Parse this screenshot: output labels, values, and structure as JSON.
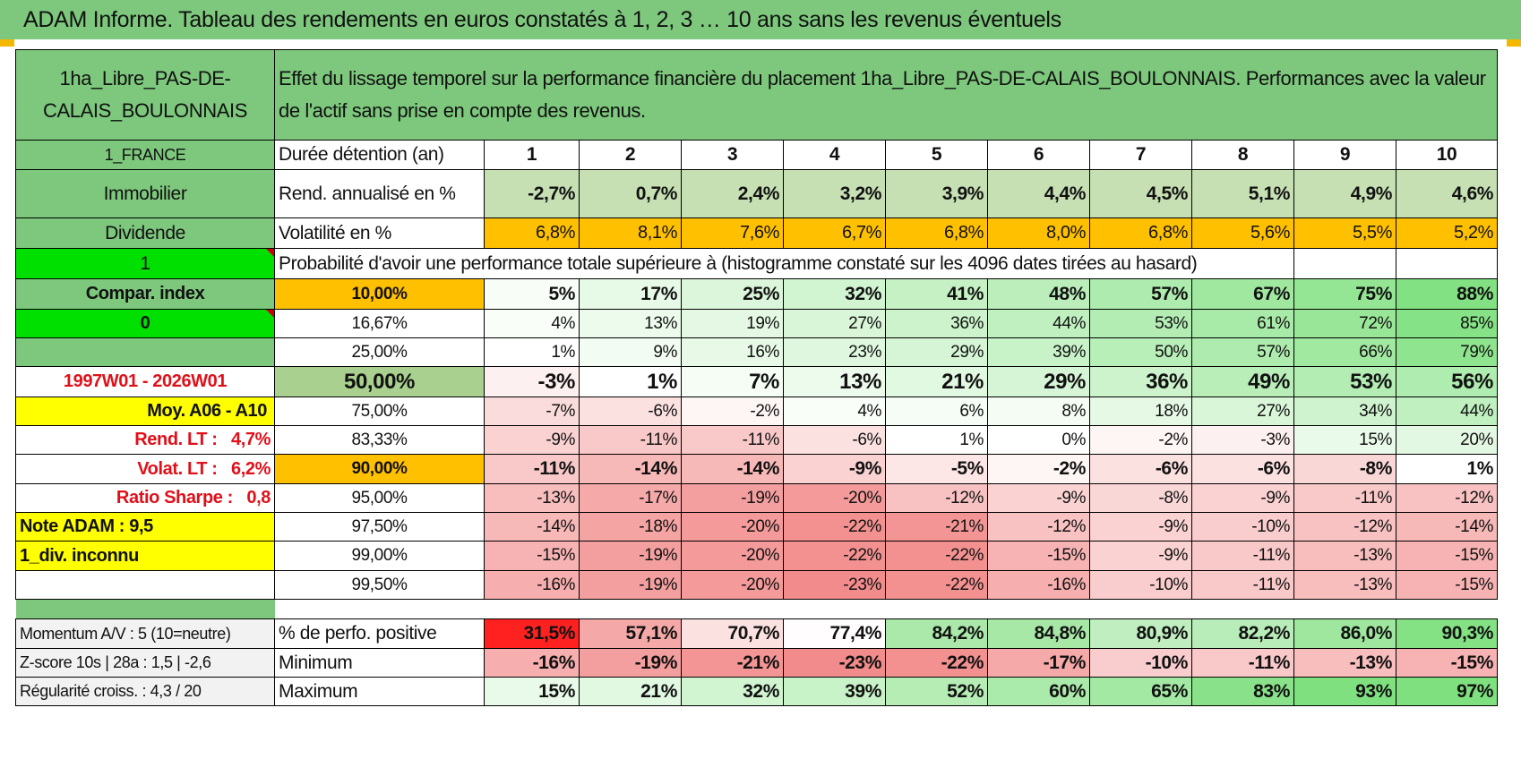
{
  "title": "ADAM Informe. Tableau des rendements en euros constatés à 1, 2, 3 … 10 ans sans les revenus éventuels",
  "header": {
    "asset_name": "1ha_Libre_PAS-DE-CALAIS_BOULONNAIS",
    "description": "Effet du lissage temporel sur la performance financière du placement 1ha_Libre_PAS-DE-CALAIS_BOULONNAIS. Performances avec la valeur de l'actif sans prise en compte des revenus."
  },
  "side": {
    "country": "1_FRANCE",
    "category": "Immobilier",
    "type": "Dividende",
    "flag1": "1",
    "compar_index": "Compar. index",
    "flag2": "0",
    "period": "1997W01 - 2026W01",
    "moy": "Moy. A06 - A10",
    "rend_lt_label": "Rend. LT :",
    "rend_lt_value": "4,7%",
    "volat_lt_label": "Volat. LT :",
    "volat_lt_value": "6,2%",
    "sharpe_label": "Ratio Sharpe :",
    "sharpe_value": "0,8",
    "note": "Note ADAM : 9,5",
    "div": "1_div. inconnu"
  },
  "table": {
    "duree_label": "Durée détention (an)",
    "years": [
      "1",
      "2",
      "3",
      "4",
      "5",
      "6",
      "7",
      "8",
      "9",
      "10"
    ],
    "rend_label": "Rend. annualisé en %",
    "rend": [
      "-2,7%",
      "0,7%",
      "2,4%",
      "3,2%",
      "3,9%",
      "4,4%",
      "4,5%",
      "5,1%",
      "4,9%",
      "4,6%"
    ],
    "vol_label": "Volatilité en %",
    "vol": [
      "6,8%",
      "8,1%",
      "7,6%",
      "6,7%",
      "6,8%",
      "8,0%",
      "6,8%",
      "5,6%",
      "5,5%",
      "5,2%"
    ],
    "prob_title": "Probabilité d'avoir une performance totale supérieure à (histogramme constaté sur les 4096 dates tirées au hasard)",
    "rows": [
      {
        "p": "10,00%",
        "v": [
          "5%",
          "17%",
          "25%",
          "32%",
          "41%",
          "48%",
          "57%",
          "67%",
          "75%",
          "88%"
        ]
      },
      {
        "p": "16,67%",
        "v": [
          "4%",
          "13%",
          "19%",
          "27%",
          "36%",
          "44%",
          "53%",
          "61%",
          "72%",
          "85%"
        ]
      },
      {
        "p": "25,00%",
        "v": [
          "1%",
          "9%",
          "16%",
          "23%",
          "29%",
          "39%",
          "50%",
          "57%",
          "66%",
          "79%"
        ]
      },
      {
        "p": "50,00%",
        "v": [
          "-3%",
          "1%",
          "7%",
          "13%",
          "21%",
          "29%",
          "36%",
          "49%",
          "53%",
          "56%"
        ]
      },
      {
        "p": "75,00%",
        "v": [
          "-7%",
          "-6%",
          "-2%",
          "4%",
          "6%",
          "8%",
          "18%",
          "27%",
          "34%",
          "44%"
        ]
      },
      {
        "p": "83,33%",
        "v": [
          "-9%",
          "-11%",
          "-11%",
          "-6%",
          "1%",
          "0%",
          "-2%",
          "-3%",
          "15%",
          "20%"
        ]
      },
      {
        "p": "90,00%",
        "v": [
          "-11%",
          "-14%",
          "-14%",
          "-9%",
          "-5%",
          "-2%",
          "-6%",
          "-6%",
          "-8%",
          "1%"
        ]
      },
      {
        "p": "95,00%",
        "v": [
          "-13%",
          "-17%",
          "-19%",
          "-20%",
          "-12%",
          "-9%",
          "-8%",
          "-9%",
          "-11%",
          "-12%"
        ]
      },
      {
        "p": "97,50%",
        "v": [
          "-14%",
          "-18%",
          "-20%",
          "-22%",
          "-21%",
          "-12%",
          "-9%",
          "-10%",
          "-12%",
          "-14%"
        ]
      },
      {
        "p": "99,00%",
        "v": [
          "-15%",
          "-19%",
          "-20%",
          "-22%",
          "-22%",
          "-15%",
          "-9%",
          "-11%",
          "-13%",
          "-15%"
        ]
      },
      {
        "p": "99,50%",
        "v": [
          "-16%",
          "-19%",
          "-20%",
          "-23%",
          "-22%",
          "-16%",
          "-10%",
          "-11%",
          "-13%",
          "-15%"
        ]
      }
    ],
    "momentum_label": "Momentum A/V : 5 (10=neutre)",
    "pos_label": "% de perfo. positive",
    "pos": [
      "31,5%",
      "57,1%",
      "70,7%",
      "77,4%",
      "84,2%",
      "84,8%",
      "80,9%",
      "82,2%",
      "86,0%",
      "90,3%"
    ],
    "zscore_label": "Z-score 10s | 28a : 1,5 | -2,6",
    "min_label": "Minimum",
    "min": [
      "-16%",
      "-19%",
      "-21%",
      "-23%",
      "-22%",
      "-17%",
      "-10%",
      "-11%",
      "-13%",
      "-15%"
    ],
    "regul_label": "Régularité croiss. : 4,3 / 20",
    "max_label": "Maximum",
    "max": [
      "15%",
      "21%",
      "32%",
      "39%",
      "52%",
      "60%",
      "65%",
      "83%",
      "93%",
      "97%"
    ]
  },
  "colors": {
    "green_header": "#7dc87d",
    "bright_green": "#00e000",
    "orange": "#ffc000",
    "yellow": "#ffff00",
    "red_text": "#e0101a"
  }
}
